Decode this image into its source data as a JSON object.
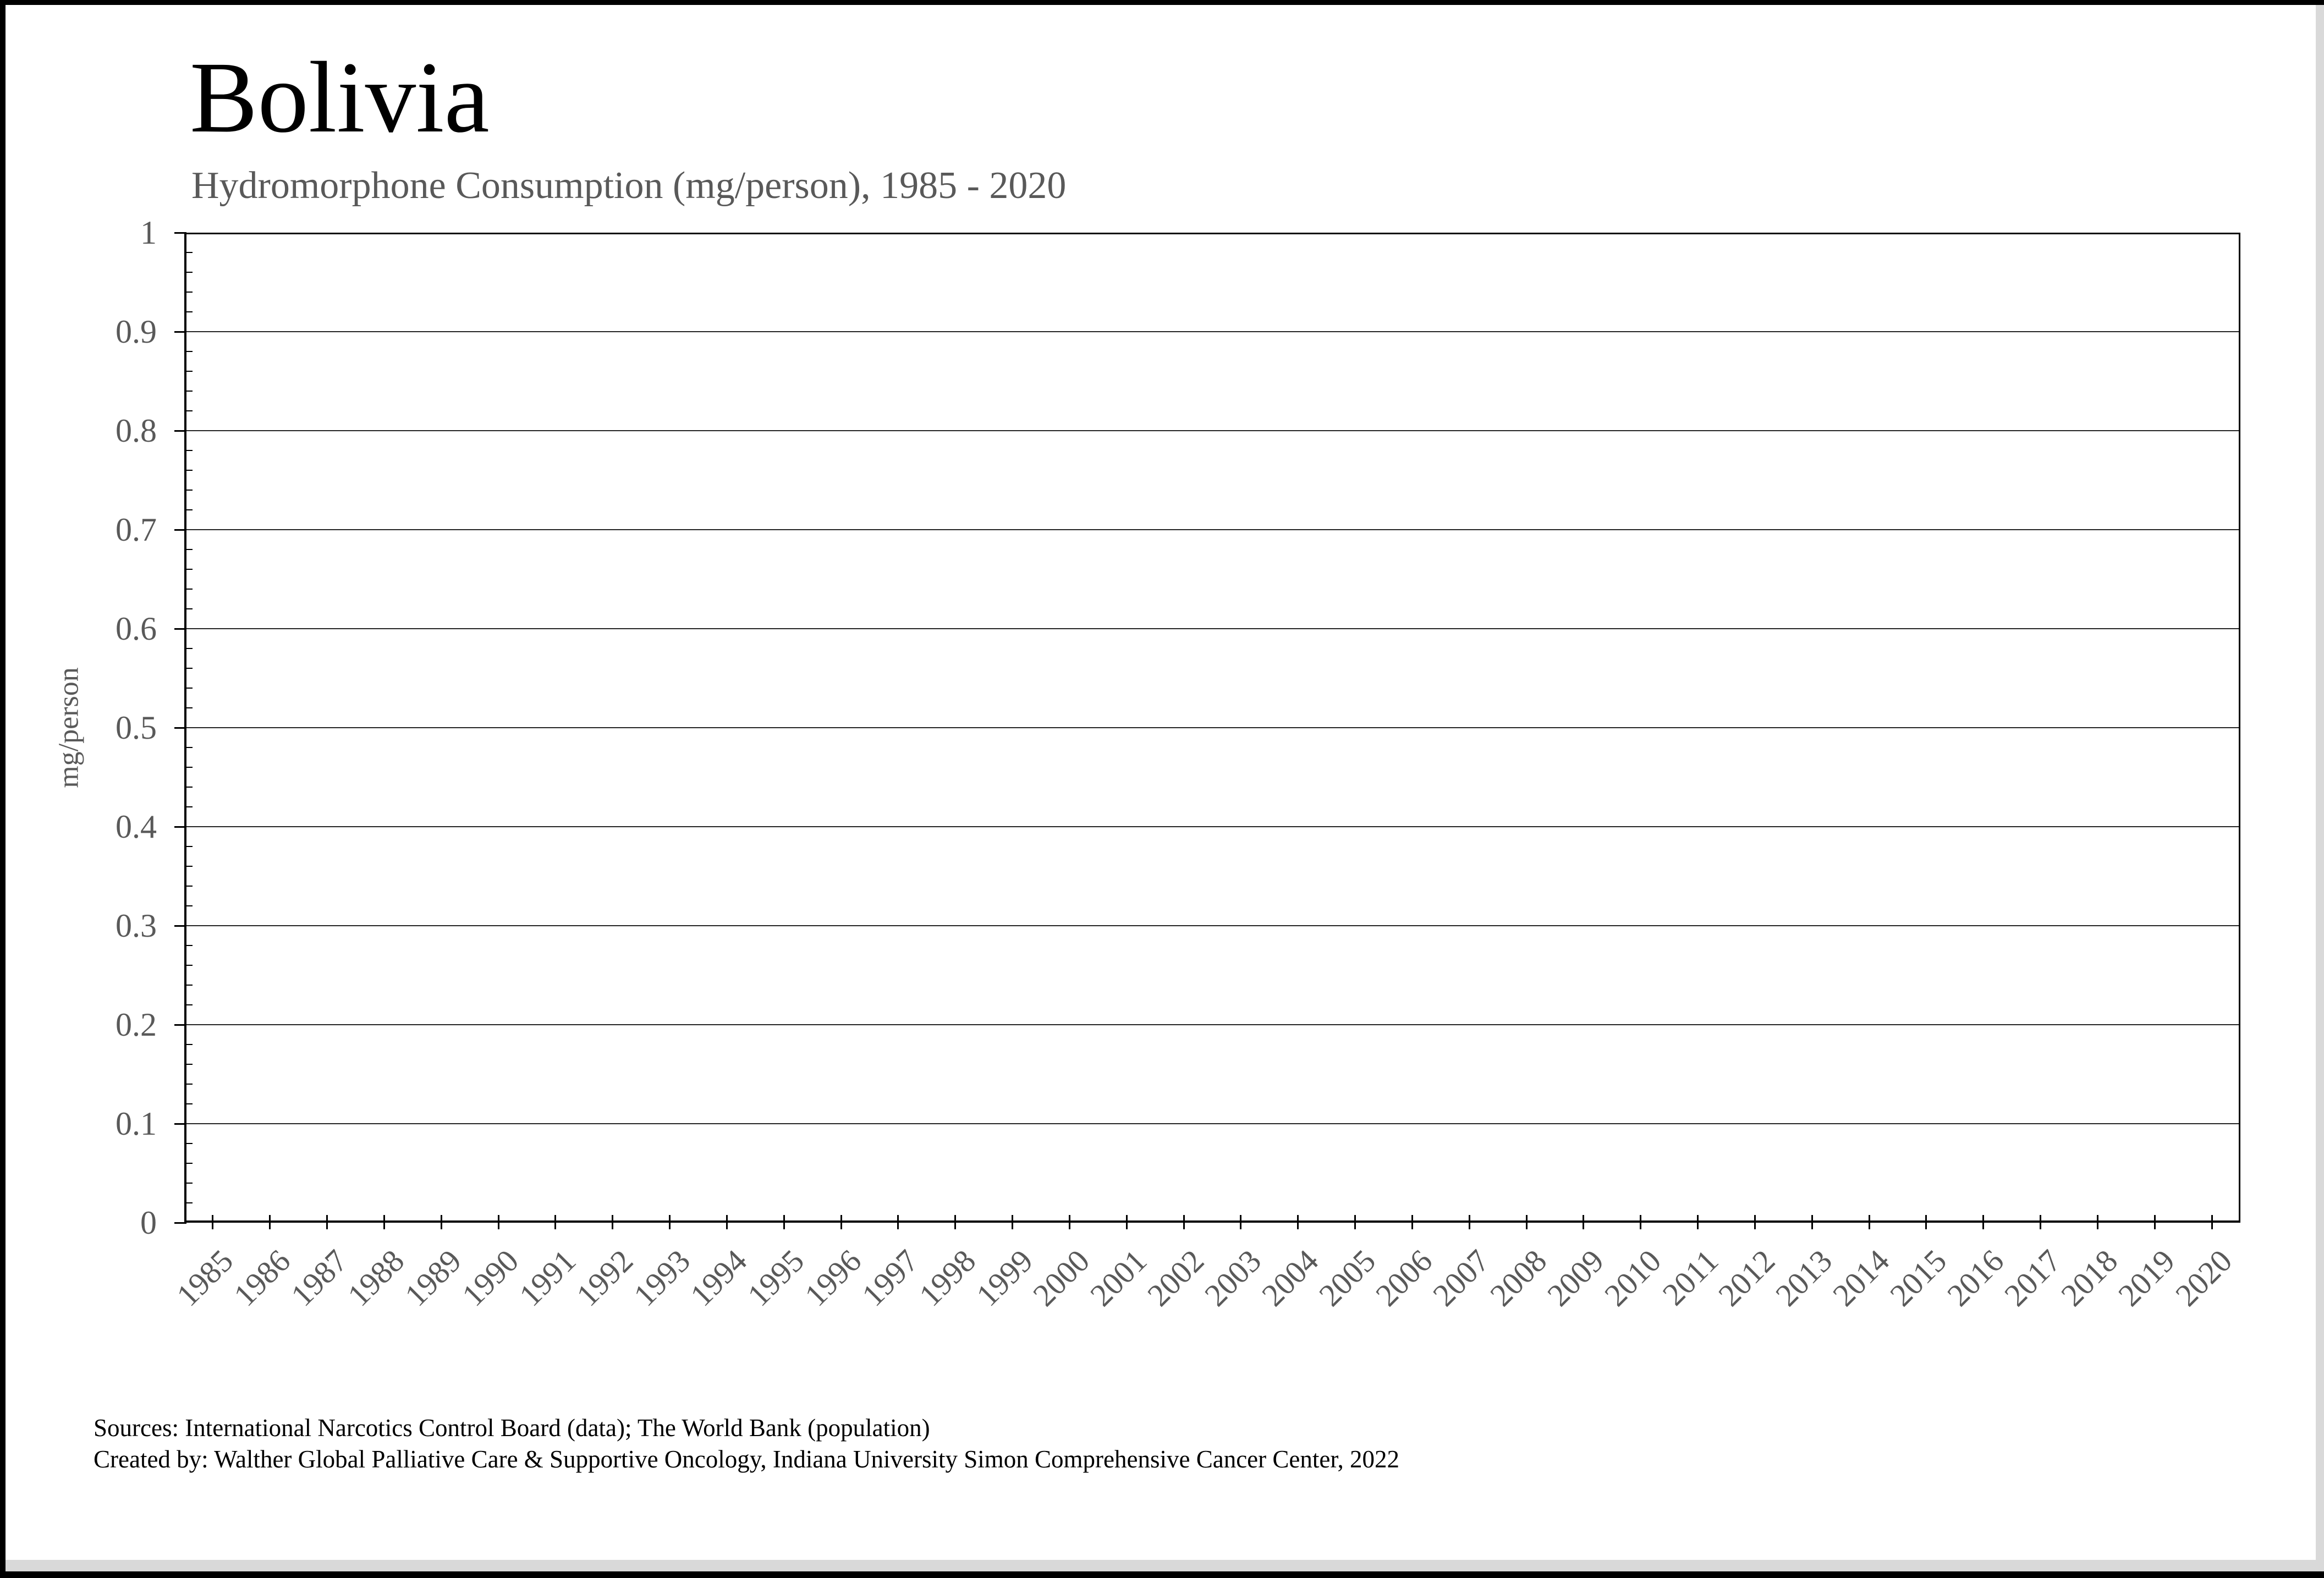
{
  "header": {
    "title": "Bolivia",
    "subtitle": "Hydromorphone Consumption (mg/person), 1985 - 2020"
  },
  "footer": {
    "source_line1": "Sources: International Narcotics Control Board (data); The World Bank (population)",
    "source_line2": "Created by: Walther Global Palliative Care & Supportive Oncology, Indiana University Simon Comprehensive Cancer Center, 2022"
  },
  "chart_data": {
    "type": "line",
    "title": "Bolivia",
    "subtitle": "Hydromorphone Consumption (mg/person), 1985 - 2020",
    "xlabel": "",
    "ylabel": "mg/person",
    "ylim": [
      0,
      1
    ],
    "ytick_step": 0.1,
    "yminor_step": 0.02,
    "yticks": [
      "0",
      "0.1",
      "0.2",
      "0.3",
      "0.4",
      "0.5",
      "0.6",
      "0.7",
      "0.8",
      "0.9",
      "1"
    ],
    "categories": [
      "1985",
      "1986",
      "1987",
      "1988",
      "1989",
      "1990",
      "1991",
      "1992",
      "1993",
      "1994",
      "1995",
      "1996",
      "1997",
      "1998",
      "1999",
      "2000",
      "2001",
      "2002",
      "2003",
      "2004",
      "2005",
      "2006",
      "2007",
      "2008",
      "2009",
      "2010",
      "2011",
      "2012",
      "2013",
      "2014",
      "2015",
      "2016",
      "2017",
      "2018",
      "2019",
      "2020"
    ],
    "series": [],
    "grid": "horizontal-major",
    "legend_position": "none",
    "x_label_rotation_deg": 45
  },
  "colors": {
    "axis": "#000000",
    "gridline": "#262626",
    "tick_label": "#595959",
    "subtitle": "#595959",
    "title": "#000000",
    "frame_border": "#000000",
    "frame_edge_strip": "#d9d9d9",
    "background": "#ffffff"
  }
}
